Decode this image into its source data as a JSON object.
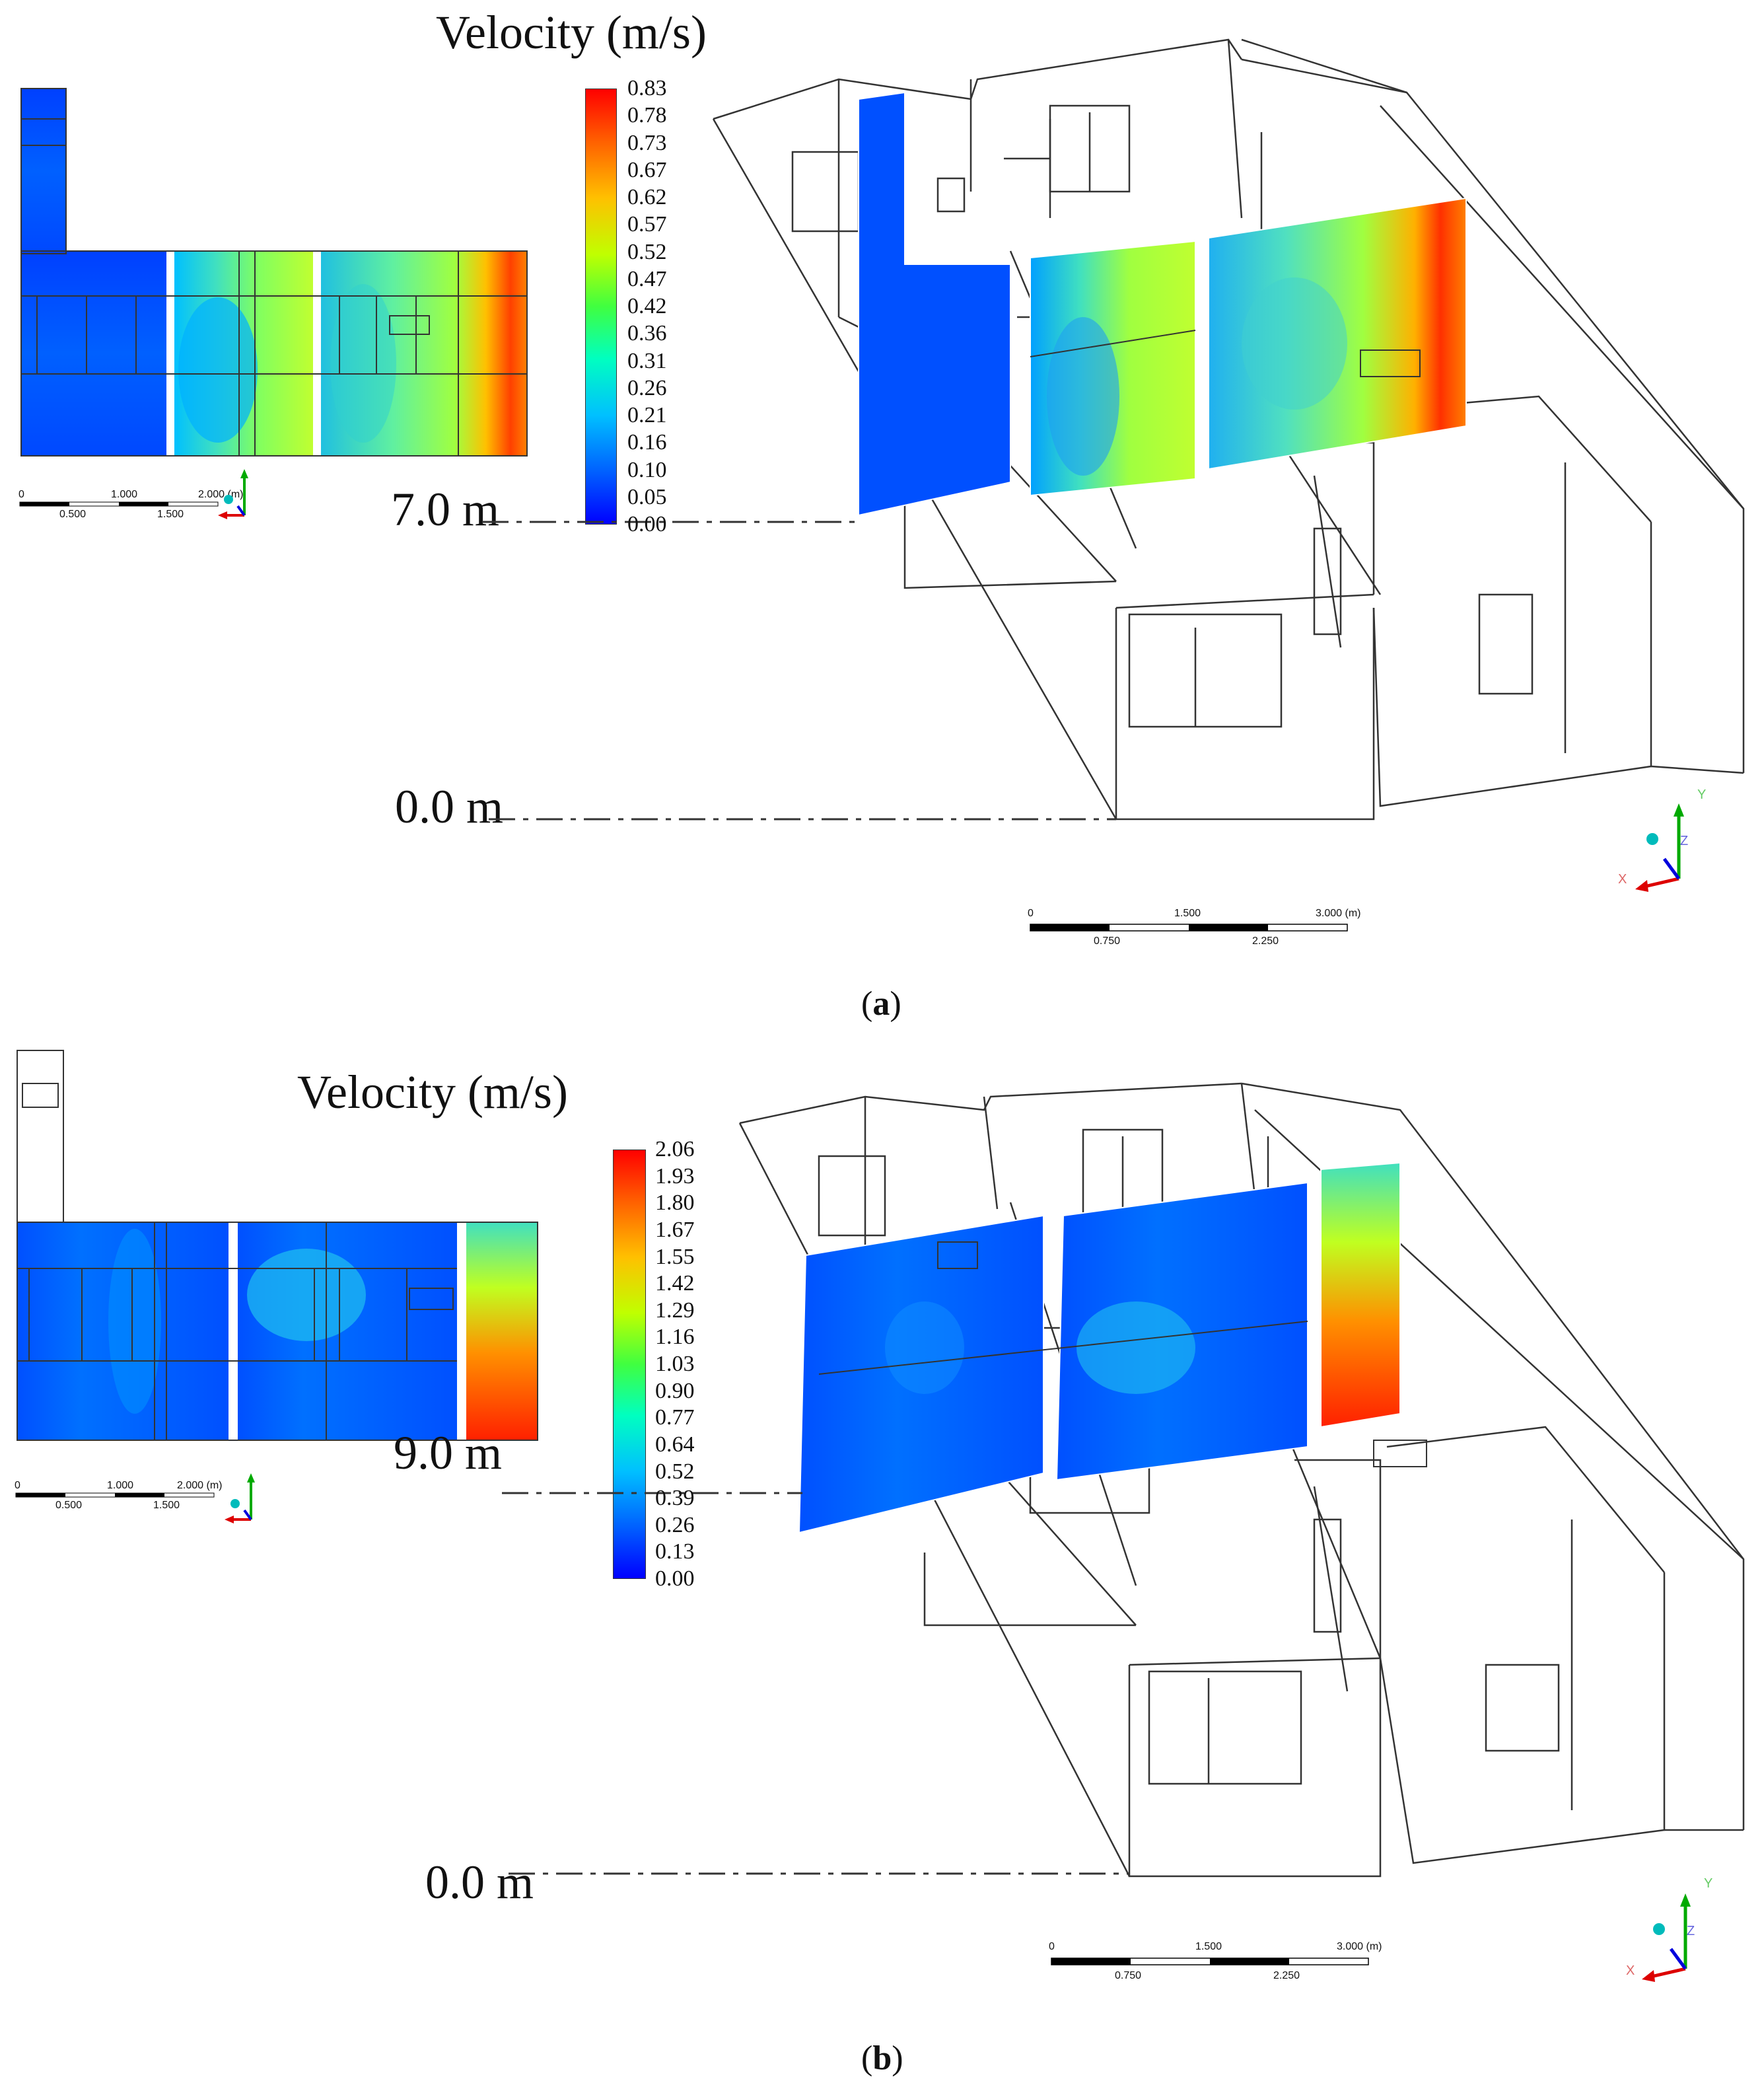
{
  "panels": [
    {
      "id": "a",
      "caption_letter": "a",
      "title": "Velocity (m/s)",
      "colorbar_ticks": [
        "0.83",
        "0.78",
        "0.73",
        "0.67",
        "0.62",
        "0.57",
        "0.52",
        "0.47",
        "0.42",
        "0.36",
        "0.31",
        "0.26",
        "0.21",
        "0.16",
        "0.10",
        "0.05",
        "0.00"
      ],
      "colorbar_range": [
        0.0,
        0.83
      ],
      "level_top": "7.0 m",
      "level_bottom": "0.0 m",
      "scalebar": {
        "labels_top": [
          "0",
          "1.500",
          "3.000 (m)"
        ],
        "labels_bottom": [
          "0.750",
          "2.250"
        ]
      },
      "mini_scalebar": {
        "labels_top": [
          "0",
          "1.000",
          "2.000 (m)"
        ],
        "labels_bottom": [
          "0.500",
          "1.500"
        ]
      },
      "axes": [
        "X",
        "Y",
        "Z"
      ]
    },
    {
      "id": "b",
      "caption_letter": "b",
      "title": "Velocity (m/s)",
      "colorbar_ticks": [
        "2.06",
        "1.93",
        "1.80",
        "1.67",
        "1.55",
        "1.42",
        "1.29",
        "1.16",
        "1.03",
        "0.90",
        "0.77",
        "0.64",
        "0.52",
        "0.39",
        "0.26",
        "0.13",
        "0.00"
      ],
      "colorbar_range": [
        0.0,
        2.06
      ],
      "level_top": "9.0 m",
      "level_bottom": "0.0 m",
      "scalebar": {
        "labels_top": [
          "0",
          "1.500",
          "3.000 (m)"
        ],
        "labels_bottom": [
          "0.750",
          "2.250"
        ]
      },
      "mini_scalebar": {
        "labels_top": [
          "0",
          "1.000",
          "2.000 (m)"
        ],
        "labels_bottom": [
          "0.500",
          "1.500"
        ]
      },
      "axes": [
        "X",
        "Y",
        "Z"
      ]
    }
  ],
  "colors": {
    "colormap": [
      "#0000ff",
      "#0060ff",
      "#00c0ff",
      "#00ffc0",
      "#40ff40",
      "#c0ff00",
      "#ffc000",
      "#ff6000",
      "#ff0000"
    ],
    "wireframe": "#333333"
  }
}
